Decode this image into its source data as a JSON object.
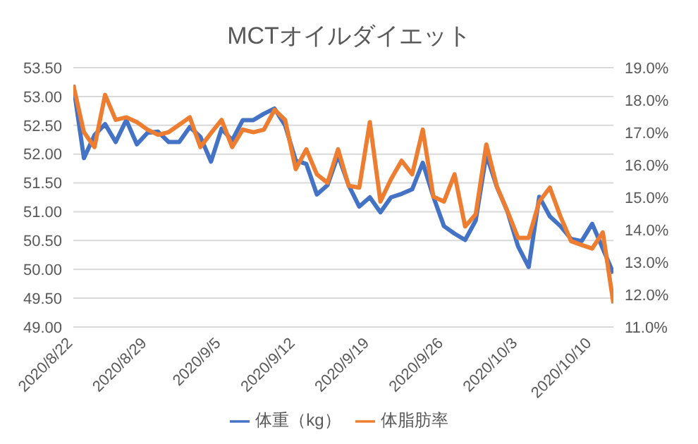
{
  "chart_data": {
    "type": "line",
    "title": "MCTオイルダイエット",
    "x": [
      "2020-08-22",
      "2020-08-23",
      "2020-08-24",
      "2020-08-25",
      "2020-08-26",
      "2020-08-27",
      "2020-08-28",
      "2020-08-29",
      "2020-08-30",
      "2020-08-31",
      "2020-09-01",
      "2020-09-02",
      "2020-09-03",
      "2020-09-04",
      "2020-09-05",
      "2020-09-06",
      "2020-09-07",
      "2020-09-08",
      "2020-09-09",
      "2020-09-10",
      "2020-09-11",
      "2020-09-12",
      "2020-09-13",
      "2020-09-14",
      "2020-09-15",
      "2020-09-16",
      "2020-09-17",
      "2020-09-18",
      "2020-09-19",
      "2020-09-20",
      "2020-09-21",
      "2020-09-22",
      "2020-09-23",
      "2020-09-24",
      "2020-09-25",
      "2020-09-26",
      "2020-09-27",
      "2020-09-28",
      "2020-09-29",
      "2020-09-30",
      "2020-10-01",
      "2020-10-02",
      "2020-10-03",
      "2020-10-04",
      "2020-10-05",
      "2020-10-06",
      "2020-10-07",
      "2020-10-08",
      "2020-10-09",
      "2020-10-10",
      "2020-10-11",
      "2020-10-12"
    ],
    "series": [
      {
        "name": "体重（kg）",
        "color": "#4472c4",
        "values": [
          53.2,
          51.93,
          52.33,
          52.52,
          52.21,
          52.59,
          52.17,
          52.37,
          52.39,
          52.21,
          52.21,
          52.47,
          52.3,
          51.87,
          52.44,
          52.24,
          52.59,
          52.59,
          52.7,
          52.79,
          52.5,
          51.89,
          51.83,
          51.3,
          51.46,
          51.98,
          51.46,
          51.09,
          51.25,
          50.99,
          51.25,
          51.31,
          51.39,
          51.85,
          51.26,
          50.75,
          50.62,
          50.51,
          50.85,
          51.99,
          51.43,
          51.0,
          50.4,
          50.04,
          51.26,
          50.92,
          50.75,
          50.53,
          50.49,
          50.79,
          50.36,
          49.93
        ]
      },
      {
        "name": "体脂肪率",
        "color": "#ed7d31",
        "axis": "y2",
        "values": [
          18.46,
          17.01,
          16.55,
          18.16,
          17.39,
          17.47,
          17.32,
          17.09,
          16.93,
          17.01,
          17.24,
          17.47,
          16.55,
          16.98,
          17.39,
          16.55,
          17.09,
          17.01,
          17.09,
          17.7,
          17.39,
          15.87,
          16.48,
          15.71,
          15.45,
          16.48,
          15.36,
          15.3,
          17.32,
          14.87,
          15.56,
          16.13,
          15.71,
          17.09,
          15.02,
          14.87,
          15.71,
          14.1,
          14.48,
          16.63,
          15.33,
          14.57,
          13.75,
          13.75,
          14.87,
          15.3,
          14.41,
          13.65,
          13.53,
          13.42,
          13.92,
          11.73
        ]
      }
    ],
    "xlim": [
      "2020-08-22",
      "2020-10-12"
    ],
    "xticks": [
      {
        "value": "2020-08-22",
        "label": "2020/8/22"
      },
      {
        "value": "2020-08-29",
        "label": "2020/8/29"
      },
      {
        "value": "2020-09-05",
        "label": "2020/9/5"
      },
      {
        "value": "2020-09-12",
        "label": "2020/9/12"
      },
      {
        "value": "2020-09-19",
        "label": "2020/9/19"
      },
      {
        "value": "2020-09-26",
        "label": "2020/9/26"
      },
      {
        "value": "2020-10-03",
        "label": "2020/10/3"
      },
      {
        "value": "2020-10-10",
        "label": "2020/10/10"
      }
    ],
    "ylim": [
      49,
      53.5
    ],
    "yticks": [
      {
        "value": 49,
        "label": "49.00"
      },
      {
        "value": 49.5,
        "label": "49.50"
      },
      {
        "value": 50,
        "label": "50.00"
      },
      {
        "value": 50.5,
        "label": "50.50"
      },
      {
        "value": 51,
        "label": "51.00"
      },
      {
        "value": 51.5,
        "label": "51.50"
      },
      {
        "value": 52,
        "label": "52.00"
      },
      {
        "value": 52.5,
        "label": "52.50"
      },
      {
        "value": 53,
        "label": "53.00"
      },
      {
        "value": 53.5,
        "label": "53.50"
      }
    ],
    "y2lim": [
      11,
      19
    ],
    "y2ticks": [
      {
        "value": 11,
        "label": "11.0%"
      },
      {
        "value": 12,
        "label": "12.0%"
      },
      {
        "value": 13,
        "label": "13.0%"
      },
      {
        "value": 14,
        "label": "14.0%"
      },
      {
        "value": 15,
        "label": "15.0%"
      },
      {
        "value": 16,
        "label": "16.0%"
      },
      {
        "value": 17,
        "label": "17.0%"
      },
      {
        "value": 18,
        "label": "18.0%"
      },
      {
        "value": 19,
        "label": "19.0%"
      }
    ],
    "grid": "y",
    "legend": "bottom",
    "marker": "none",
    "line_style": "solid"
  }
}
